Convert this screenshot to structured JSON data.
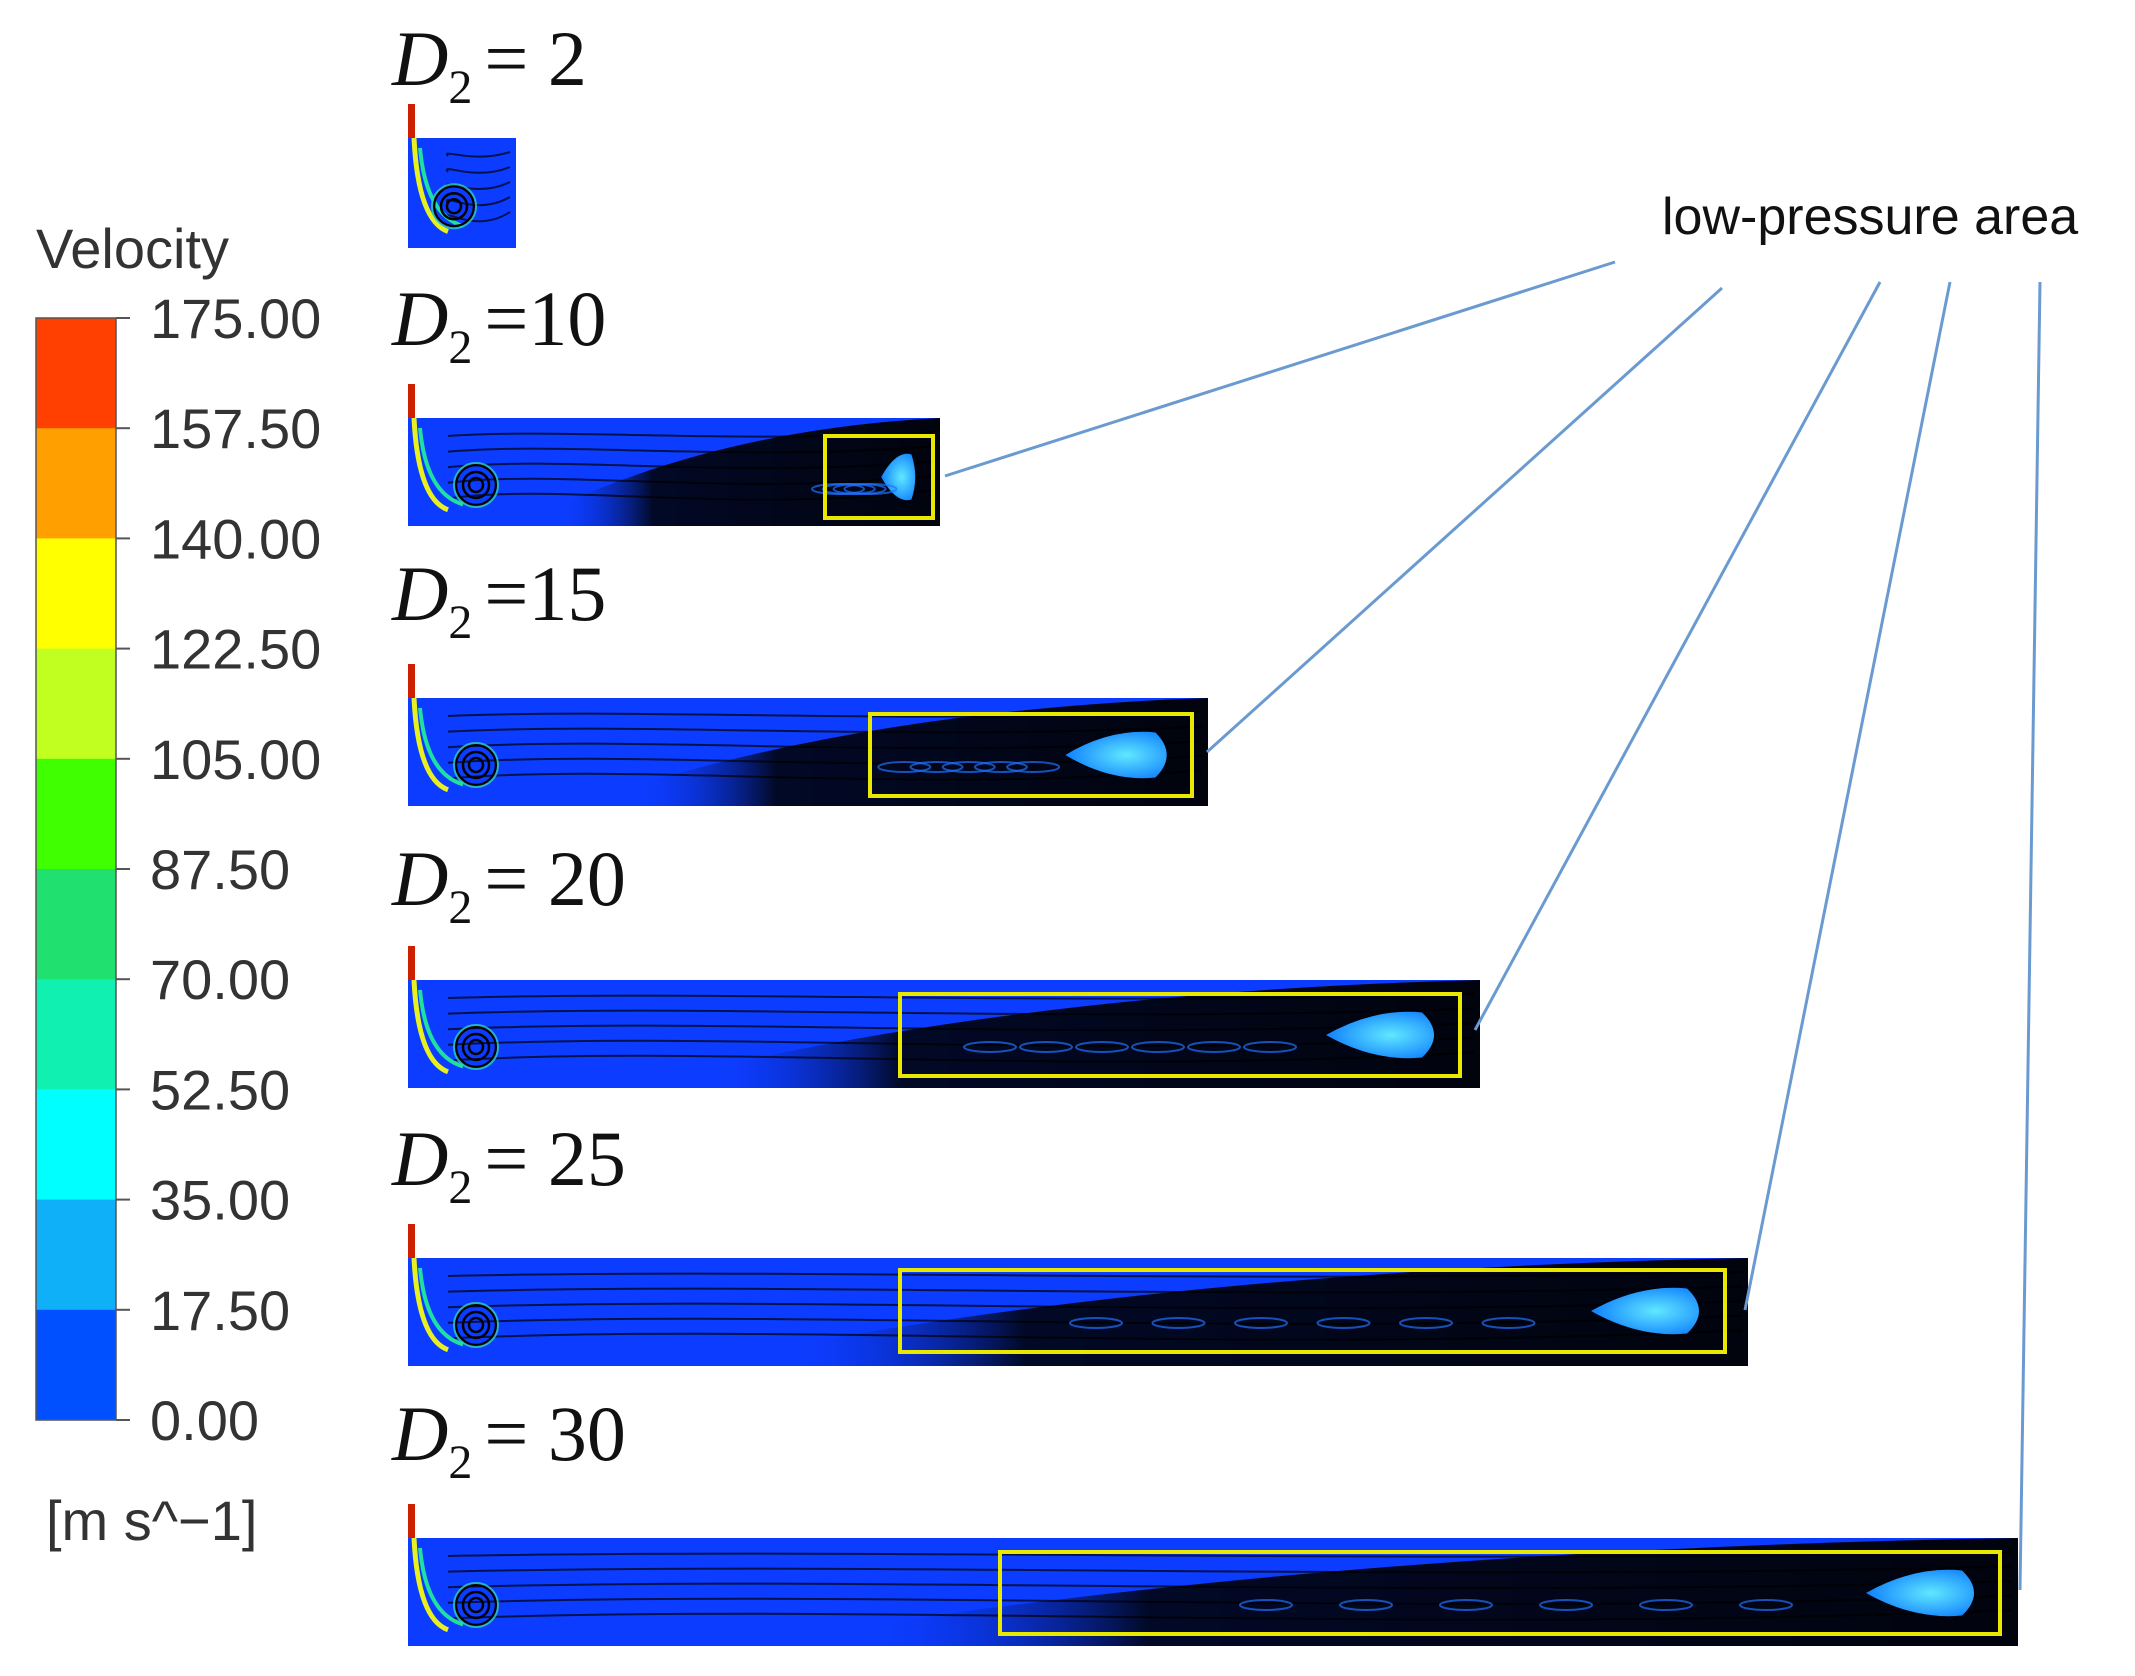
{
  "legend": {
    "title": "Velocity",
    "unit": "[m s^−1]",
    "ticks": [
      "175.00",
      "157.50",
      "140.00",
      "122.50",
      "105.00",
      "87.50",
      "70.00",
      "52.50",
      "35.00",
      "17.50",
      "0.00"
    ],
    "colors": [
      "#ff4000",
      "#ffa000",
      "#ffff00",
      "#c0ff20",
      "#40ff00",
      "#20e070",
      "#10f0b0",
      "#00ffff",
      "#10b0f8",
      "#0050ff"
    ]
  },
  "annotation": {
    "label": "low-pressure area",
    "line_color": "#6a9ad0",
    "box_color": "#e8e800"
  },
  "colors": {
    "field": "#0c3cff",
    "wake": "#000000",
    "light": "#20b0ff",
    "streamline": "#000000"
  },
  "panels": [
    {
      "var": "D",
      "sub": "2",
      "eq": "= 2",
      "D2": 2
    },
    {
      "var": "D",
      "sub": "2",
      "eq": "=10",
      "D2": 10
    },
    {
      "var": "D",
      "sub": "2",
      "eq": "=15",
      "D2": 15
    },
    {
      "var": "D",
      "sub": "2",
      "eq": "= 20",
      "D2": 20
    },
    {
      "var": "D",
      "sub": "2",
      "eq": "= 25",
      "D2": 25
    },
    {
      "var": "D",
      "sub": "2",
      "eq": "= 30",
      "D2": 30
    }
  ]
}
